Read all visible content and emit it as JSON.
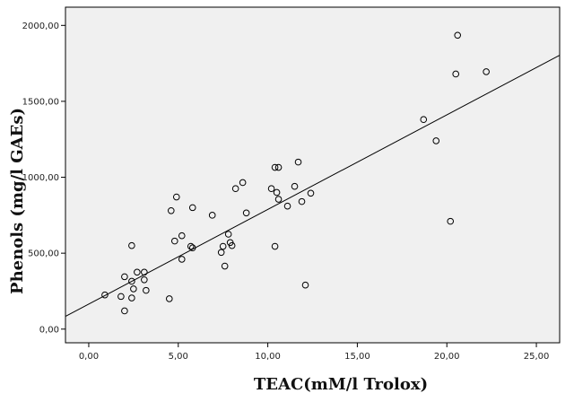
{
  "chart_data": {
    "type": "scatter",
    "title": "",
    "xlabel": "TEAC(mM/l Trolox)",
    "ylabel": "Phenols (mg/l GAEs)",
    "xlim": [
      -1.3,
      26.3
    ],
    "ylim": [
      -90,
      2120
    ],
    "x_ticks": [
      0,
      5,
      10,
      15,
      20,
      25
    ],
    "y_ticks": [
      0,
      500,
      1000,
      1500,
      2000
    ],
    "x_tick_labels": [
      "0,00",
      "5,00",
      "10,00",
      "15,00",
      "20,00",
      "25,00"
    ],
    "y_tick_labels": [
      "0,00",
      "500,00",
      "1000,00",
      "1500,00",
      "2000,00"
    ],
    "grid": false,
    "background_color": "#f0f0f0",
    "marker": "open-circle",
    "fit_line": {
      "intercept": 165,
      "slope": 62.3
    },
    "series": [
      {
        "points": [
          [
            0.9,
            225
          ],
          [
            1.8,
            215
          ],
          [
            2.0,
            345
          ],
          [
            2.0,
            120
          ],
          [
            2.4,
            205
          ],
          [
            2.4,
            315
          ],
          [
            2.5,
            265
          ],
          [
            2.4,
            550
          ],
          [
            2.7,
            375
          ],
          [
            3.1,
            375
          ],
          [
            3.1,
            325
          ],
          [
            3.2,
            255
          ],
          [
            4.5,
            200
          ],
          [
            4.6,
            780
          ],
          [
            4.8,
            580
          ],
          [
            4.9,
            870
          ],
          [
            5.2,
            615
          ],
          [
            5.2,
            460
          ],
          [
            5.7,
            545
          ],
          [
            5.8,
            535
          ],
          [
            5.8,
            800
          ],
          [
            6.9,
            750
          ],
          [
            7.4,
            505
          ],
          [
            7.5,
            545
          ],
          [
            7.6,
            415
          ],
          [
            7.8,
            625
          ],
          [
            7.9,
            570
          ],
          [
            8.0,
            550
          ],
          [
            8.2,
            925
          ],
          [
            8.6,
            965
          ],
          [
            8.8,
            765
          ],
          [
            10.2,
            925
          ],
          [
            10.4,
            545
          ],
          [
            10.4,
            1065
          ],
          [
            10.5,
            900
          ],
          [
            10.6,
            1065
          ],
          [
            10.6,
            855
          ],
          [
            11.1,
            810
          ],
          [
            11.5,
            940
          ],
          [
            11.7,
            1100
          ],
          [
            11.9,
            840
          ],
          [
            12.1,
            290
          ],
          [
            12.4,
            895
          ],
          [
            18.7,
            1380
          ],
          [
            19.4,
            1240
          ],
          [
            20.2,
            710
          ],
          [
            20.5,
            1680
          ],
          [
            20.6,
            1935
          ],
          [
            22.2,
            1695
          ]
        ]
      }
    ]
  }
}
